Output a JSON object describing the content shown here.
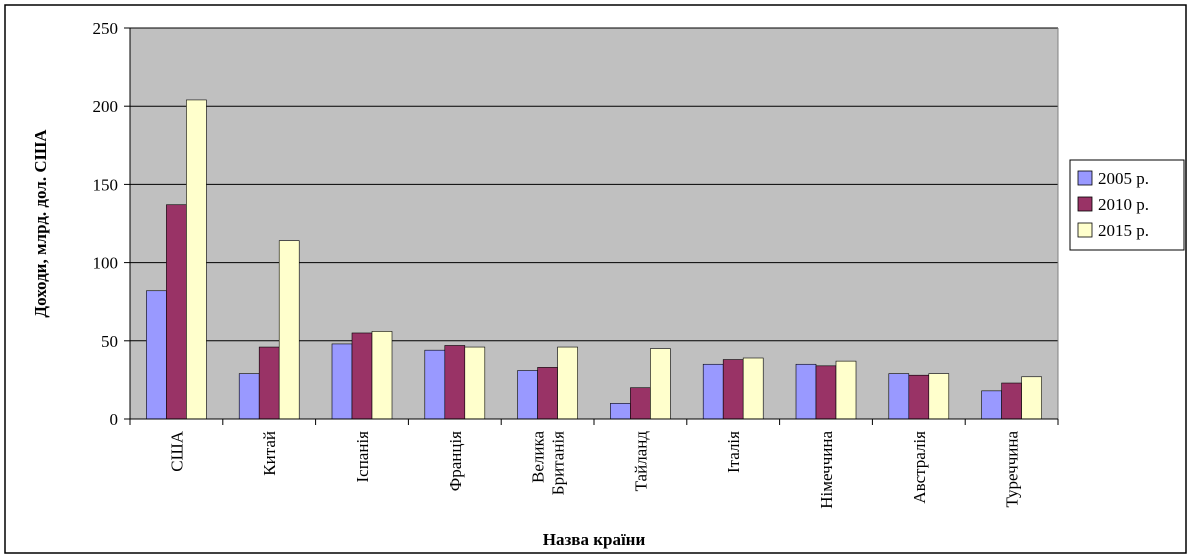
{
  "chart_data": {
    "type": "bar",
    "xlabel": "Назва країни",
    "ylabel": "Доходи, млрд. дол. США",
    "ylim": [
      0,
      250
    ],
    "yticks": [
      0,
      50,
      100,
      150,
      200,
      250
    ],
    "categories": [
      [
        "США"
      ],
      [
        "Китай"
      ],
      [
        "Іспанія"
      ],
      [
        "Франція"
      ],
      [
        "Велика",
        "Британія"
      ],
      [
        "Тайланд"
      ],
      [
        "Італія"
      ],
      [
        "Німеччина"
      ],
      [
        "Австралія"
      ],
      [
        "Туреччина"
      ]
    ],
    "series": [
      {
        "name": "2005 р.",
        "color": "#9999ff",
        "values": [
          82,
          29,
          48,
          44,
          31,
          10,
          35,
          35,
          29,
          18
        ]
      },
      {
        "name": "2010 р.",
        "color": "#993366",
        "values": [
          137,
          46,
          55,
          47,
          33,
          20,
          38,
          34,
          28,
          23
        ]
      },
      {
        "name": "2015 р.",
        "color": "#ffffcc",
        "values": [
          204,
          114,
          56,
          46,
          46,
          45,
          39,
          37,
          29,
          27
        ]
      }
    ],
    "plot_background": "#c0c0c0",
    "grid": true,
    "legend_position": "right"
  }
}
